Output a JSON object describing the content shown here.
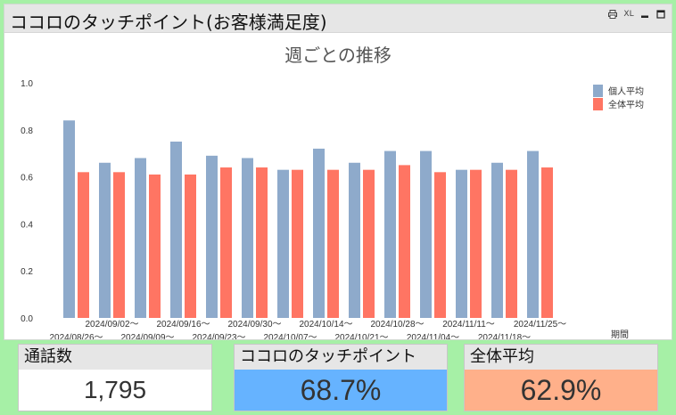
{
  "panel": {
    "title": "ココロのタッチポイント(お客様満足度)",
    "tools": {
      "print_label": "",
      "xl_label": "XL"
    }
  },
  "chart_data": {
    "type": "bar",
    "title": "週ごとの推移",
    "xlabel": "期間",
    "ylabel": "",
    "ylim": [
      0,
      1.0
    ],
    "yticks": [
      "0.0",
      "0.2",
      "0.4",
      "0.6",
      "0.8",
      "1.0"
    ],
    "legend_position": "top-right",
    "categories": [
      "2024/08/26～",
      "2024/09/02～",
      "2024/09/09～",
      "2024/09/16～",
      "2024/09/23～",
      "2024/09/30～",
      "2024/10/07～",
      "2024/10/14～",
      "2024/10/21～",
      "2024/10/28～",
      "2024/11/04～",
      "2024/11/11～",
      "2024/11/18～",
      "2024/11/25～"
    ],
    "series": [
      {
        "name": "個人平均",
        "color": "#8eaacb",
        "values": [
          0.84,
          0.66,
          0.68,
          0.75,
          0.69,
          0.68,
          0.63,
          0.72,
          0.66,
          0.71,
          0.71,
          0.63,
          0.66,
          0.71
        ]
      },
      {
        "name": "全体平均",
        "color": "#ff7563",
        "values": [
          0.62,
          0.62,
          0.61,
          0.61,
          0.64,
          0.64,
          0.63,
          0.63,
          0.63,
          0.65,
          0.62,
          0.63,
          0.63,
          0.64
        ]
      }
    ]
  },
  "kpis": {
    "calls": {
      "label": "通話数",
      "value": "1,795"
    },
    "touchpoint": {
      "label": "ココロのタッチポイント",
      "value": "68.7%"
    },
    "overall": {
      "label": "全体平均",
      "value": "62.9%"
    }
  }
}
